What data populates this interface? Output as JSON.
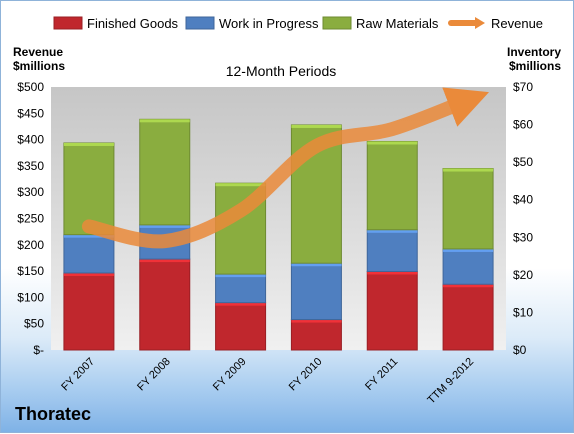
{
  "chart_data": {
    "type": "bar",
    "stacked": true,
    "title": "12-Month Periods",
    "company": "Thoratec",
    "left_axis_title": [
      "Revenue",
      "$millions"
    ],
    "right_axis_title": [
      "Inventory",
      "$millions"
    ],
    "categories": [
      "FY 2007",
      "FY 2008",
      "FY 2009",
      "FY 2010",
      "FY 2011",
      "TTM 9-2012"
    ],
    "series": [
      {
        "name": "Finished Goods",
        "axis": "right",
        "color": "#c0272d",
        "values": [
          20.5,
          24.2,
          12.6,
          8.1,
          20.9,
          17.5
        ]
      },
      {
        "name": "Work in Progress",
        "axis": "right",
        "color": "#4f7fc0",
        "values": [
          10.2,
          9.1,
          7.6,
          15.0,
          11.1,
          9.4
        ]
      },
      {
        "name": "Raw Materials",
        "axis": "right",
        "color": "#8aad3f",
        "values": [
          24.4,
          28.1,
          24.2,
          36.8,
          23.5,
          21.4
        ]
      },
      {
        "name": "Revenue",
        "axis": "left",
        "type": "line",
        "color": "#ea8a3a",
        "values": [
          235,
          207,
          265,
          388,
          420,
          475
        ]
      }
    ],
    "left_axis": {
      "min": 0,
      "max": 500,
      "step": 50,
      "labels": [
        "$-",
        "$50",
        "$100",
        "$150",
        "$200",
        "$250",
        "$300",
        "$350",
        "$400",
        "$450",
        "$500"
      ]
    },
    "right_axis": {
      "min": 0,
      "max": 70,
      "step": 10,
      "labels": [
        "$0",
        "$10",
        "$20",
        "$30",
        "$40",
        "$50",
        "$60",
        "$70"
      ]
    },
    "legend_position": "top",
    "grid": false
  }
}
